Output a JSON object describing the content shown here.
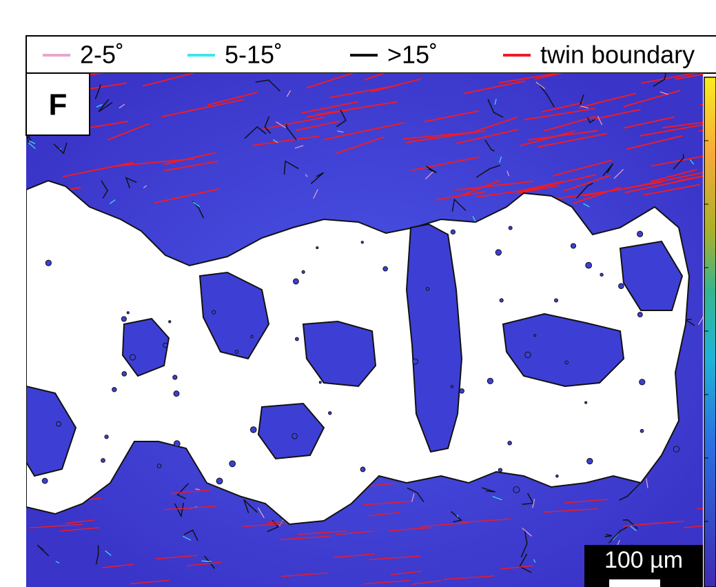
{
  "legend": {
    "items": [
      {
        "label": "2-5˚",
        "color": "#e8a6cc"
      },
      {
        "label": "5-15˚",
        "color": "#3ee6ee"
      },
      {
        "label": ">15˚",
        "color": "#111111"
      },
      {
        "label": "twin boundary",
        "color": "#ee1c25"
      }
    ]
  },
  "panel_label": "F",
  "scale_bar": {
    "label": "100 µm"
  }
}
